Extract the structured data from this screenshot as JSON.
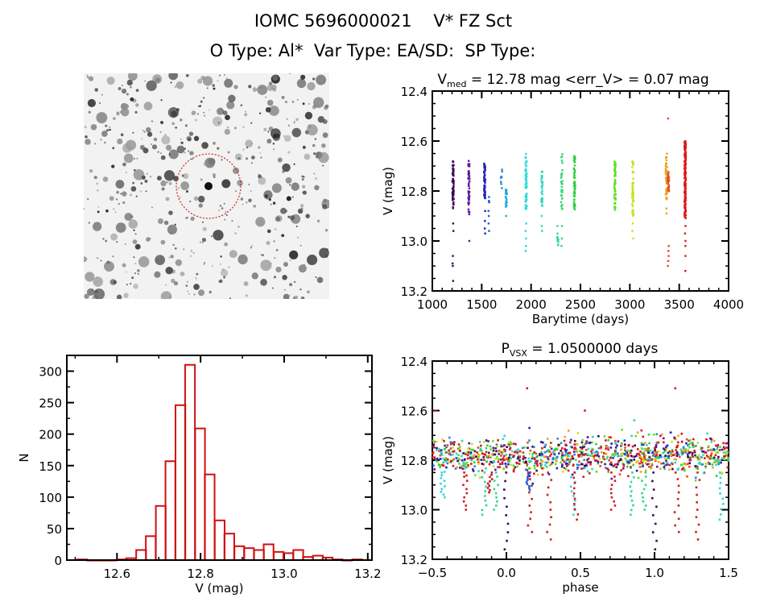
{
  "header": {
    "title": "IOMC 5696000021    V* FZ Sct",
    "subtitle": "O Type: Al*  Var Type: EA/SD:  SP Type:"
  },
  "finder_chart": {
    "description": "Grayscale sky image with dashed red circle marking target star at center",
    "circle_color": "#cc2222"
  },
  "chart_data": [
    {
      "id": "light-curve",
      "type": "scatter",
      "title_main": "V",
      "title_sub": "med",
      "title_rest": " = 12.78 mag <err_V> = 0.07 mag",
      "xlabel": "Barytime (days)",
      "ylabel": "V (mag)",
      "xlim": [
        1000,
        4000
      ],
      "ylim": [
        13.2,
        12.4
      ],
      "y_inverted": true,
      "xticks": [
        1000,
        1500,
        2000,
        2500,
        3000,
        3500,
        4000
      ],
      "yticks": [
        12.4,
        12.6,
        12.8,
        13.0,
        13.2
      ],
      "xtick_labels": [
        "1000",
        "1500",
        "2000",
        "2500",
        "3000",
        "3500",
        "4000"
      ],
      "ytick_labels": [
        "12.4",
        "12.6",
        "12.8",
        "13.0",
        "13.2"
      ],
      "seasons": [
        {
          "t": 1210,
          "color": "#3a0a5a",
          "v_top": 12.68,
          "v_bot": 12.87,
          "n": 60,
          "outliers": [
            12.93,
            12.96,
            13.06,
            13.09,
            13.1,
            13.16
          ]
        },
        {
          "t": 1370,
          "color": "#5a1a9a",
          "v_top": 12.67,
          "v_bot": 12.9,
          "n": 45,
          "outliers": [
            13.0
          ]
        },
        {
          "t": 1530,
          "color": "#2020c0",
          "v_top": 12.69,
          "v_bot": 12.83,
          "n": 50,
          "outliers": [
            12.88,
            12.92,
            12.95,
            12.97
          ]
        },
        {
          "t": 1570,
          "color": "#2060d0",
          "v_top": 12.82,
          "v_bot": 12.85,
          "n": 4,
          "outliers": [
            12.88,
            12.9,
            12.93,
            12.96
          ]
        },
        {
          "t": 1700,
          "color": "#2888d0",
          "v_top": 12.71,
          "v_bot": 12.79,
          "n": 8,
          "outliers": []
        },
        {
          "t": 1750,
          "color": "#20a8e0",
          "v_top": 12.79,
          "v_bot": 12.87,
          "n": 20,
          "outliers": [
            12.9
          ]
        },
        {
          "t": 1950,
          "color": "#30d8d8",
          "v_top": 12.65,
          "v_bot": 12.88,
          "n": 55,
          "outliers": [
            12.93,
            12.96,
            12.99,
            13.02,
            13.04
          ]
        },
        {
          "t": 2110,
          "color": "#30d8c0",
          "v_top": 12.72,
          "v_bot": 12.86,
          "n": 30,
          "outliers": [
            12.9,
            12.94,
            12.96
          ]
        },
        {
          "t": 2270,
          "color": "#30d890",
          "v_top": 12.97,
          "v_bot": 13.02,
          "n": 10,
          "outliers": [
            12.94
          ]
        },
        {
          "t": 2310,
          "color": "#30d870",
          "v_top": 12.65,
          "v_bot": 12.88,
          "n": 30,
          "outliers": [
            12.94,
            12.99,
            13.02
          ]
        },
        {
          "t": 2440,
          "color": "#30d040",
          "v_top": 12.66,
          "v_bot": 12.88,
          "n": 60,
          "outliers": []
        },
        {
          "t": 2850,
          "color": "#60e020",
          "v_top": 12.68,
          "v_bot": 12.88,
          "n": 60,
          "outliers": []
        },
        {
          "t": 3030,
          "color": "#c8e020",
          "v_top": 12.68,
          "v_bot": 12.9,
          "n": 50,
          "outliers": [
            12.93,
            12.96,
            12.99
          ]
        },
        {
          "t": 3370,
          "color": "#f0a020",
          "v_top": 12.65,
          "v_bot": 12.84,
          "n": 45,
          "outliers": [
            12.87,
            12.89
          ]
        },
        {
          "t": 3390,
          "color": "#e05018",
          "v_top": 12.72,
          "v_bot": 12.81,
          "n": 25,
          "outliers": [
            12.51,
            13.02,
            13.04,
            13.06,
            13.08,
            13.1
          ]
        },
        {
          "t": 3560,
          "color": "#e01818",
          "v_top": 12.6,
          "v_bot": 12.91,
          "n": 160,
          "outliers": [
            12.94,
            12.97,
            13.0,
            13.02,
            13.06,
            13.12
          ]
        }
      ]
    },
    {
      "id": "histogram",
      "type": "bar",
      "xlabel": "V (mag)",
      "ylabel": "N",
      "xlim": [
        12.48,
        13.21
      ],
      "ylim": [
        0,
        325
      ],
      "xticks": [
        12.6,
        12.8,
        13.0,
        13.2
      ],
      "xtick_labels": [
        "12.6",
        "12.8",
        "13.0",
        "13.2"
      ],
      "yticks": [
        0,
        50,
        100,
        150,
        200,
        250,
        300
      ],
      "ytick_labels": [
        "0",
        "50",
        "100",
        "150",
        "200",
        "250",
        "300"
      ],
      "bar_color": "#d01010",
      "bin_width": 0.0235,
      "bin_starts": [
        12.505,
        12.528,
        12.552,
        12.575,
        12.599,
        12.622,
        12.646,
        12.669,
        12.693,
        12.716,
        12.74,
        12.763,
        12.787,
        12.81,
        12.834,
        12.857,
        12.881,
        12.904,
        12.928,
        12.951,
        12.975,
        12.998,
        13.022,
        13.045,
        13.069,
        13.092,
        13.116,
        13.139,
        13.163
      ],
      "values": [
        1,
        0,
        0,
        0,
        1,
        3,
        16,
        38,
        86,
        157,
        246,
        310,
        209,
        136,
        63,
        42,
        22,
        19,
        16,
        25,
        13,
        11,
        16,
        5,
        7,
        4,
        1,
        0,
        1
      ]
    },
    {
      "id": "phase-curve",
      "type": "scatter",
      "title_main": "P",
      "title_sub": "VSX",
      "title_rest": " = 1.0500000 days",
      "xlabel": "phase",
      "ylabel": "V (mag)",
      "xlim": [
        -0.5,
        1.5
      ],
      "ylim": [
        13.2,
        12.4
      ],
      "y_inverted": true,
      "xticks": [
        -0.5,
        0.0,
        0.5,
        1.0,
        1.5
      ],
      "xtick_labels": [
        "−0.5",
        "0.0",
        "0.5",
        "1.0",
        "1.5"
      ],
      "yticks": [
        12.4,
        12.6,
        12.8,
        13.0,
        13.2
      ],
      "ytick_labels": [
        "12.4",
        "12.6",
        "12.8",
        "13.0",
        "13.2"
      ],
      "period_days": 1.05,
      "baseline_v": 12.78,
      "baseline_scatter": 0.05,
      "dips": [
        {
          "phase": -0.28,
          "depth": 13.0,
          "color": "#d02020"
        },
        {
          "phase": -0.43,
          "depth": 12.95,
          "color": "#30d8d8"
        },
        {
          "phase": -0.15,
          "depth": 13.02,
          "color": "#30d890"
        },
        {
          "phase": -0.07,
          "depth": 13.0,
          "color": "#30d890"
        },
        {
          "phase": -0.11,
          "depth": 12.93,
          "color": "#c02020"
        },
        {
          "phase": 0.0,
          "depth": 13.16,
          "color": "#3a0a5a"
        },
        {
          "phase": 0.15,
          "depth": 12.92,
          "color": "#2060d0"
        },
        {
          "phase": 0.16,
          "depth": 13.09,
          "color": "#d02020"
        },
        {
          "phase": 0.29,
          "depth": 13.12,
          "color": "#d02020"
        },
        {
          "phase": 0.45,
          "depth": 13.02,
          "color": "#30d8d8"
        },
        {
          "phase": 0.47,
          "depth": 13.04,
          "color": "#d02020"
        },
        {
          "phase": 0.72,
          "depth": 13.0,
          "color": "#d02020"
        },
        {
          "phase": 0.85,
          "depth": 13.02,
          "color": "#30d890"
        },
        {
          "phase": 0.93,
          "depth": 13.0,
          "color": "#30d890"
        },
        {
          "phase": 1.0,
          "depth": 13.16,
          "color": "#3a0a5a"
        },
        {
          "phase": 1.15,
          "depth": 13.09,
          "color": "#d02020"
        },
        {
          "phase": 1.29,
          "depth": 13.12,
          "color": "#d02020"
        },
        {
          "phase": 1.45,
          "depth": 13.04,
          "color": "#30d8d8"
        }
      ],
      "palette": [
        "#3a0a5a",
        "#5a1a9a",
        "#2020c0",
        "#2888d0",
        "#30d8d8",
        "#30d890",
        "#30d040",
        "#60e020",
        "#c8e020",
        "#f0a020",
        "#e05018",
        "#e01818",
        "#e01818",
        "#e01818"
      ],
      "outliers": [
        {
          "phase": 0.14,
          "v": 12.51,
          "color": "#d02020"
        },
        {
          "phase": 1.14,
          "v": 12.51,
          "color": "#d02020"
        },
        {
          "phase": 0.53,
          "v": 12.6,
          "color": "#d02020"
        },
        {
          "phase": -0.48,
          "v": 12.6,
          "color": "#d02020"
        }
      ]
    }
  ]
}
